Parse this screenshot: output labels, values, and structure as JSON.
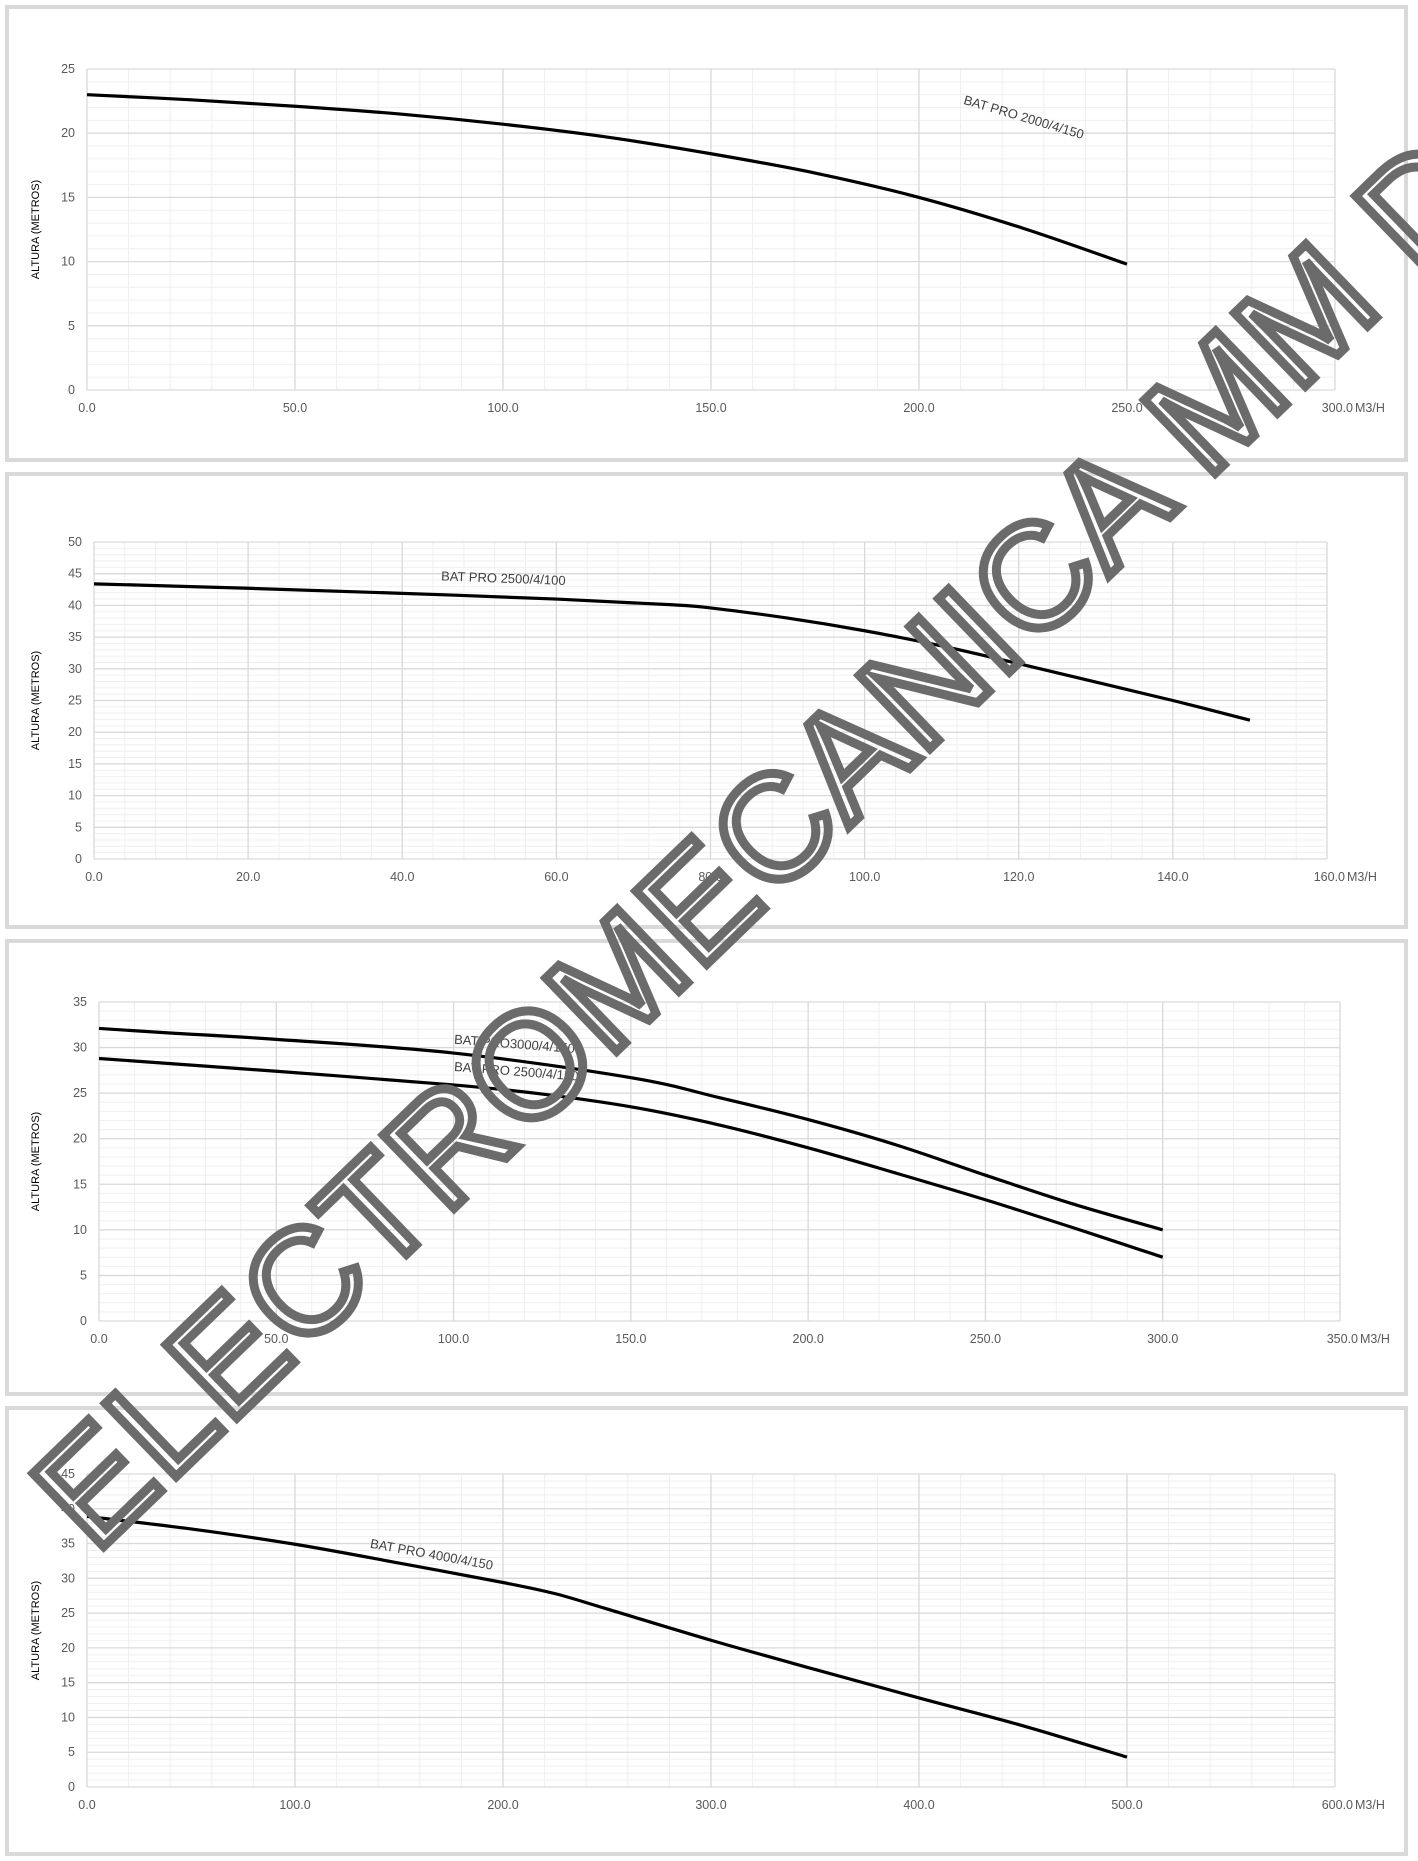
{
  "watermark": "ELECTROMECANICA MM DISTRIBUIDOR OFICIAL",
  "colors": {
    "grid_major": "#d9d9d9",
    "grid_minor": "#efefef",
    "line": "#000000",
    "panel_border": "#d9d9d9",
    "tick_text": "#595959"
  },
  "chart_data": [
    {
      "type": "line",
      "ylabel": "ALTURA (METROS)",
      "xunit": "M3/H",
      "xlim": [
        0,
        300
      ],
      "ylim": [
        0,
        25
      ],
      "x_ticks": [
        "0.0",
        "50.0",
        "100.0",
        "150.0",
        "200.0",
        "250.0",
        "300.0"
      ],
      "y_ticks": [
        "0",
        "5",
        "10",
        "15",
        "20",
        "25"
      ],
      "grid": true,
      "series": [
        {
          "name": "BAT PRO 2000/4/150",
          "x": [
            0,
            25,
            50,
            75,
            100,
            125,
            150,
            175,
            200,
            225,
            250
          ],
          "y": [
            23,
            22.6,
            22.1,
            21.5,
            20.7,
            19.7,
            18.4,
            16.9,
            15.0,
            12.6,
            9.8
          ]
        }
      ]
    },
    {
      "type": "line",
      "ylabel": "ALTURA (METROS)",
      "xunit": "M3/H",
      "xlim": [
        0,
        160
      ],
      "ylim": [
        0,
        50
      ],
      "x_ticks": [
        "0.0",
        "20.0",
        "40.0",
        "60.0",
        "80.0",
        "100.0",
        "120.0",
        "140.0",
        "160.0"
      ],
      "y_ticks": [
        "0",
        "5",
        "10",
        "15",
        "20",
        "25",
        "30",
        "35",
        "40",
        "45",
        "50"
      ],
      "grid": true,
      "series": [
        {
          "name": "BAT PRO 2500/4/100",
          "x": [
            0,
            20,
            40,
            60,
            75,
            80,
            90,
            100,
            110,
            120,
            130,
            140,
            150
          ],
          "y": [
            43.4,
            42.7,
            41.9,
            41.0,
            40.1,
            39.6,
            38.0,
            36.0,
            33.6,
            30.8,
            27.9,
            25.0,
            21.9
          ]
        }
      ]
    },
    {
      "type": "line",
      "ylabel": "ALTURA (METROS)",
      "xunit": "M3/H",
      "xlim": [
        0,
        350
      ],
      "ylim": [
        0,
        35
      ],
      "x_ticks": [
        "0.0",
        "50.0",
        "100.0",
        "150.0",
        "200.0",
        "250.0",
        "300.0",
        "350.0"
      ],
      "y_ticks": [
        "0",
        "5",
        "10",
        "15",
        "20",
        "25",
        "30",
        "35"
      ],
      "grid": true,
      "series": [
        {
          "name": "BAT PRO3000/4/150",
          "x": [
            0,
            20,
            50,
            100,
            150,
            175,
            200,
            225,
            250,
            275,
            300
          ],
          "y": [
            32.1,
            31.6,
            30.9,
            29.4,
            26.7,
            24.5,
            22.1,
            19.3,
            16.0,
            12.8,
            10.0
          ]
        },
        {
          "name": "BAT PRO 2500/4/150",
          "x": [
            0,
            50,
            100,
            125,
            150,
            175,
            200,
            225,
            250,
            275,
            300
          ],
          "y": [
            28.8,
            27.4,
            25.9,
            24.9,
            23.5,
            21.5,
            19.0,
            16.2,
            13.3,
            10.2,
            7.0
          ]
        }
      ]
    },
    {
      "type": "line",
      "ylabel": "ALTURA (METROS)",
      "xunit": "M3/H",
      "xlim": [
        0,
        600
      ],
      "ylim": [
        0,
        45
      ],
      "x_ticks": [
        "0.0",
        "100.0",
        "200.0",
        "300.0",
        "400.0",
        "500.0",
        "600.0"
      ],
      "y_ticks": [
        "0",
        "5",
        "10",
        "15",
        "20",
        "25",
        "30",
        "35",
        "40",
        "45"
      ],
      "grid": true,
      "series": [
        {
          "name": "BAT PRO 4000/4/150",
          "x": [
            0,
            50,
            100,
            150,
            200,
            225,
            250,
            300,
            350,
            400,
            450,
            500
          ],
          "y": [
            38.9,
            37.1,
            34.9,
            32.2,
            29.4,
            27.8,
            25.6,
            21.1,
            16.9,
            12.8,
            8.8,
            4.3
          ]
        }
      ]
    }
  ]
}
